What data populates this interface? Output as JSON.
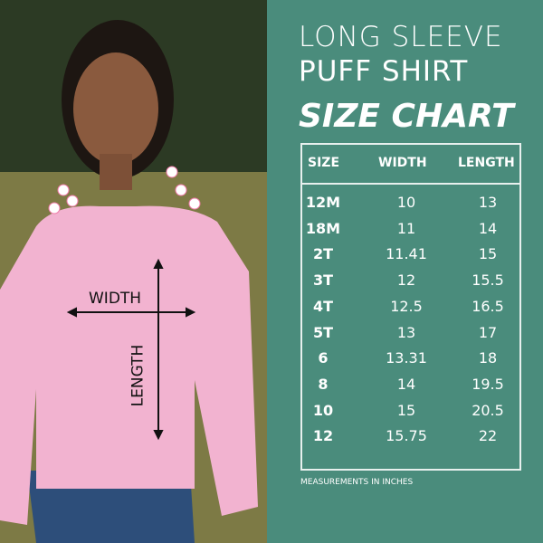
{
  "title": {
    "line1": "LONG SLEEVE",
    "line2": "PUFF SHIRT",
    "line3": "SIZE CHART"
  },
  "photo": {
    "width_label": "WIDTH",
    "length_label": "LENGTH"
  },
  "table": {
    "headers": [
      "SIZE",
      "WIDTH",
      "LENGTH"
    ],
    "rows": [
      [
        "12M",
        "10",
        "13"
      ],
      [
        "18M",
        "11",
        "14"
      ],
      [
        "2T",
        "11.41",
        "15"
      ],
      [
        "3T",
        "12",
        "15.5"
      ],
      [
        "4T",
        "12.5",
        "16.5"
      ],
      [
        "5T",
        "13",
        "17"
      ],
      [
        "6",
        "13.31",
        "18"
      ],
      [
        "8",
        "14",
        "19.5"
      ],
      [
        "10",
        "15",
        "20.5"
      ],
      [
        "12",
        "15.75",
        "22"
      ]
    ]
  },
  "note": "MEASUREMENTS IN INCHES",
  "colors": {
    "panel": "#4a8c7c",
    "shirt": "#f2b3d0",
    "text": "#ffffff"
  }
}
